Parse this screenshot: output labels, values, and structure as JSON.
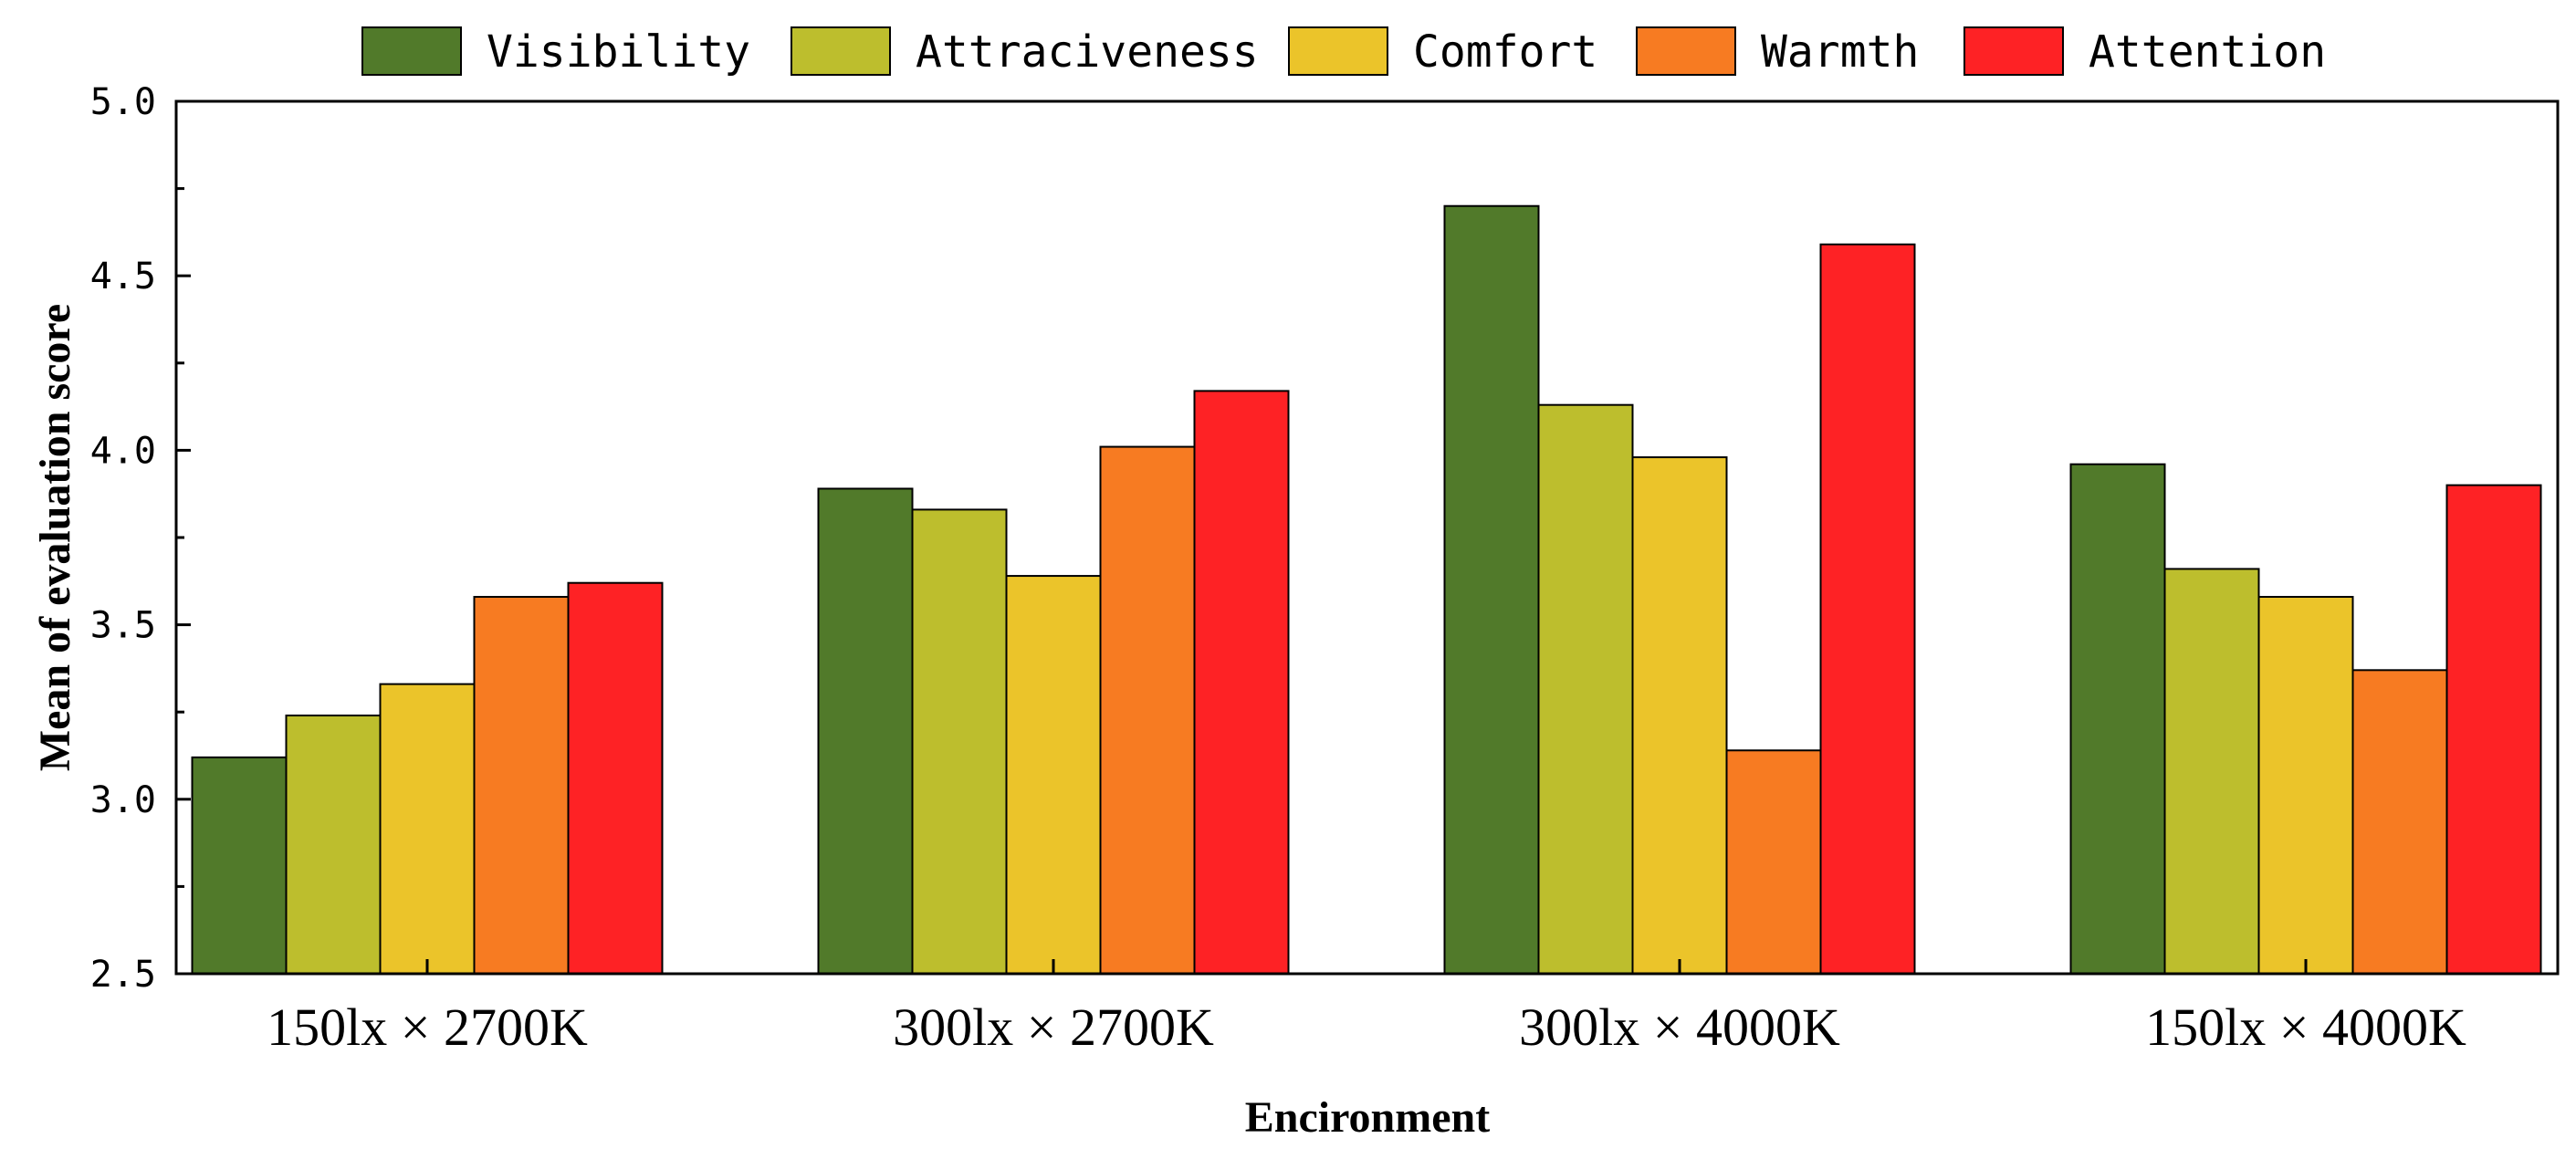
{
  "chart_data": {
    "type": "bar",
    "title": "",
    "xlabel": "Encironment",
    "ylabel": "Mean of evaluation score",
    "ylim": [
      2.5,
      5.0
    ],
    "yticks": [
      "2.5",
      "3.0",
      "3.5",
      "4.0",
      "4.5",
      "5.0"
    ],
    "categories": [
      "150lx × 2700K",
      "300lx × 2700K",
      "300lx × 4000K",
      "150lx × 4000K"
    ],
    "legend_position": "top",
    "grid": false,
    "series": [
      {
        "name": "Visibility",
        "color": "#517A2A",
        "values": [
          3.12,
          3.89,
          4.7,
          3.96
        ]
      },
      {
        "name": "Attraciveness",
        "color": "#BDBE2D",
        "values": [
          3.24,
          3.83,
          4.13,
          3.66
        ]
      },
      {
        "name": "Comfort",
        "color": "#EBC42A",
        "values": [
          3.33,
          3.64,
          3.98,
          3.58
        ]
      },
      {
        "name": "Warmth",
        "color": "#F77B22",
        "values": [
          3.58,
          4.01,
          3.14,
          3.37
        ]
      },
      {
        "name": "Attention",
        "color": "#FE2225",
        "values": [
          3.62,
          4.17,
          4.59,
          3.9
        ]
      }
    ]
  }
}
